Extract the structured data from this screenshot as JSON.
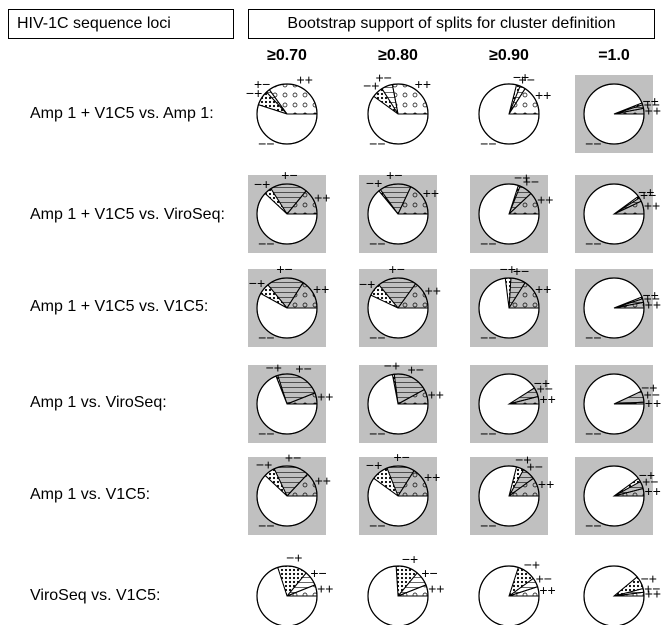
{
  "header": {
    "left": "HIV-1C sequence loci",
    "right": "Bootstrap support of splits for cluster definition"
  },
  "chart_data": {
    "type": "pie",
    "columns": [
      "≥0.70",
      "≥0.80",
      "≥0.90",
      "=1.0"
    ],
    "rows": [
      "Amp 1 + V1C5 vs. Amp 1:",
      "Amp 1 + V1C5 vs. ViroSeq:",
      "Amp 1 + V1C5 vs. V1C5:",
      "Amp 1 vs. ViroSeq:",
      "Amp 1 vs. V1C5:",
      "ViroSeq vs. V1C5:"
    ],
    "slice_labels": [
      "++",
      "+−",
      "−+",
      "−−"
    ],
    "slice_fills": {
      "++": "open circles",
      "+−": "horizontal lines",
      "−+": "filled dots",
      "−−": "blank"
    },
    "shading": {
      "gray": "#c0c0c0",
      "white": "#ffffff"
    },
    "cells": [
      [
        {
          "shaded": false,
          "slices": [
            0.35,
            0.02,
            0.08,
            0.55
          ]
        },
        {
          "shaded": false,
          "slices": [
            0.28,
            0.06,
            0.06,
            0.6
          ]
        },
        {
          "shaded": false,
          "slices": [
            0.16,
            0.03,
            0.02,
            0.79
          ]
        },
        {
          "shaded": true,
          "slices": [
            0.03,
            0.02,
            0.01,
            0.94
          ]
        }
      ],
      [
        {
          "shaded": true,
          "slices": [
            0.14,
            0.2,
            0.04,
            0.62
          ]
        },
        {
          "shaded": true,
          "slices": [
            0.18,
            0.17,
            0.01,
            0.64
          ]
        },
        {
          "shaded": true,
          "slices": [
            0.12,
            0.07,
            0.01,
            0.8
          ]
        },
        {
          "shaded": true,
          "slices": [
            0.07,
            0.02,
            0.01,
            0.9
          ]
        }
      ],
      [
        {
          "shaded": true,
          "slices": [
            0.16,
            0.2,
            0.06,
            0.58
          ]
        },
        {
          "shaded": true,
          "slices": [
            0.15,
            0.21,
            0.07,
            0.57
          ]
        },
        {
          "shaded": true,
          "slices": [
            0.16,
            0.08,
            0.03,
            0.73
          ]
        },
        {
          "shaded": true,
          "slices": [
            0.03,
            0.02,
            0.01,
            0.94
          ]
        }
      ],
      [
        {
          "shaded": true,
          "slices": [
            0.06,
            0.24,
            0.01,
            0.69
          ]
        },
        {
          "shaded": true,
          "slices": [
            0.08,
            0.19,
            0.01,
            0.72
          ]
        },
        {
          "shaded": true,
          "slices": [
            0.04,
            0.05,
            0.0,
            0.91
          ]
        },
        {
          "shaded": true,
          "slices": [
            0.01,
            0.06,
            0.0,
            0.93
          ]
        }
      ],
      [
        {
          "shaded": true,
          "slices": [
            0.13,
            0.19,
            0.06,
            0.62
          ]
        },
        {
          "shaded": true,
          "slices": [
            0.16,
            0.15,
            0.09,
            0.6
          ]
        },
        {
          "shaded": true,
          "slices": [
            0.1,
            0.07,
            0.04,
            0.79
          ]
        },
        {
          "shaded": true,
          "slices": [
            0.04,
            0.04,
            0.02,
            0.9
          ]
        }
      ],
      [
        {
          "shaded": false,
          "slices": [
            0.06,
            0.08,
            0.16,
            0.7
          ]
        },
        {
          "shaded": false,
          "slices": [
            0.06,
            0.08,
            0.12,
            0.74
          ]
        },
        {
          "shaded": false,
          "slices": [
            0.05,
            0.05,
            0.1,
            0.8
          ]
        },
        {
          "shaded": false,
          "slices": [
            0.02,
            0.02,
            0.07,
            0.89
          ]
        }
      ]
    ]
  }
}
